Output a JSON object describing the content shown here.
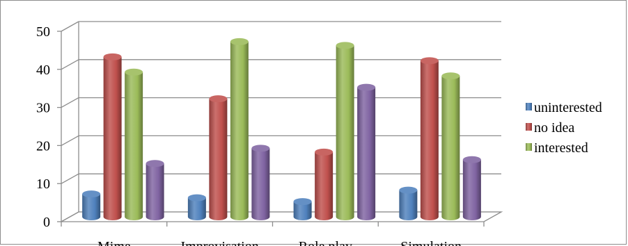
{
  "chart_data": {
    "type": "bar",
    "categories": [
      "Mime",
      "Improvisation",
      "Role play",
      "Simulation"
    ],
    "series": [
      {
        "name": "uninterested",
        "values": [
          6,
          5,
          4,
          7
        ],
        "color": "#4f81bd"
      },
      {
        "name": "no idea",
        "values": [
          42,
          31,
          17,
          41
        ],
        "color": "#c0504d"
      },
      {
        "name": "interested",
        "values": [
          38,
          46,
          45,
          37
        ],
        "color": "#9bbb59"
      },
      {
        "name": "",
        "values": [
          14,
          18,
          34,
          15
        ],
        "color": "#8064a2"
      }
    ],
    "yticks": [
      0,
      10,
      20,
      30,
      40,
      50
    ],
    "ylim": [
      0,
      50
    ],
    "title": "",
    "xlabel": "",
    "ylabel": "",
    "grid": true,
    "style": "3d-cylinder",
    "legend_position": "right"
  }
}
